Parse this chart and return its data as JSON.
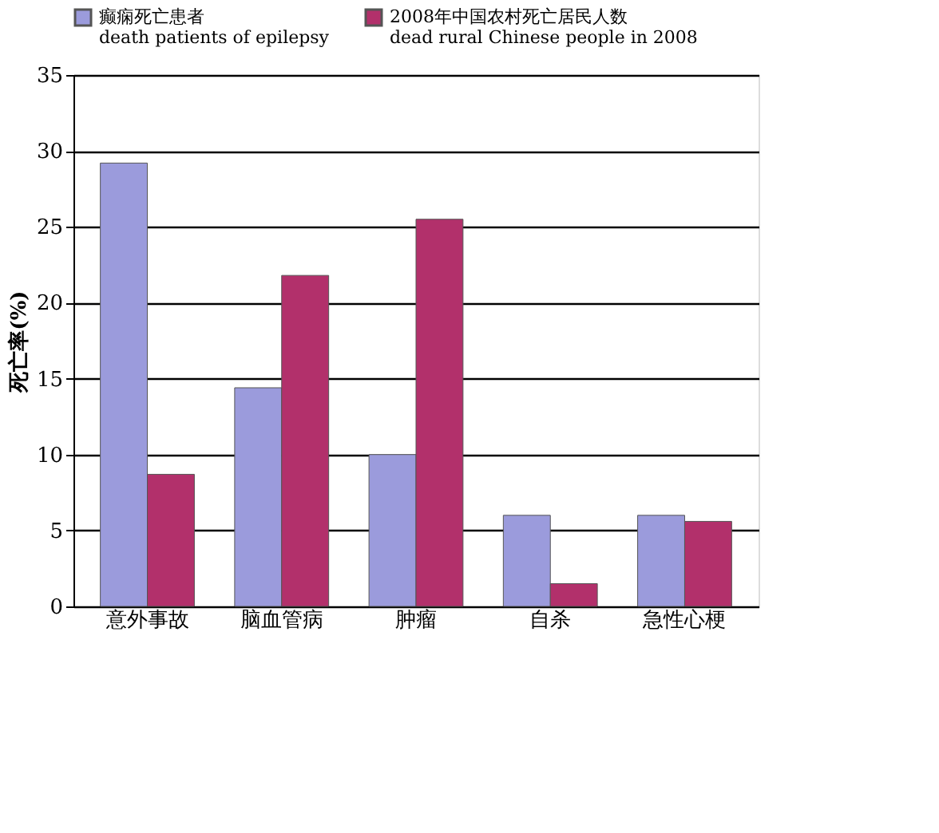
{
  "chart_data": {
    "type": "bar",
    "ylabel": "死亡率(%)",
    "categories": [
      "意外事故",
      "脑血管病",
      "肿瘤",
      "自杀",
      "急性心梗"
    ],
    "series": [
      {
        "name": "癫痫死亡患者\ndeath patients of epilepsy",
        "color": "#9b9bdc",
        "values": [
          29.2,
          14.4,
          10,
          6,
          6
        ]
      },
      {
        "name": "2008年中国农村死亡居民人数\ndead rural Chinese people in 2008",
        "color": "#b2306b",
        "values": [
          8.7,
          21.8,
          25.5,
          1.5,
          5.6
        ]
      }
    ],
    "ylim": [
      0,
      35
    ],
    "yticks": [
      0,
      5,
      10,
      15,
      20,
      25,
      30,
      35
    ],
    "grid": "y",
    "legend": "top"
  }
}
